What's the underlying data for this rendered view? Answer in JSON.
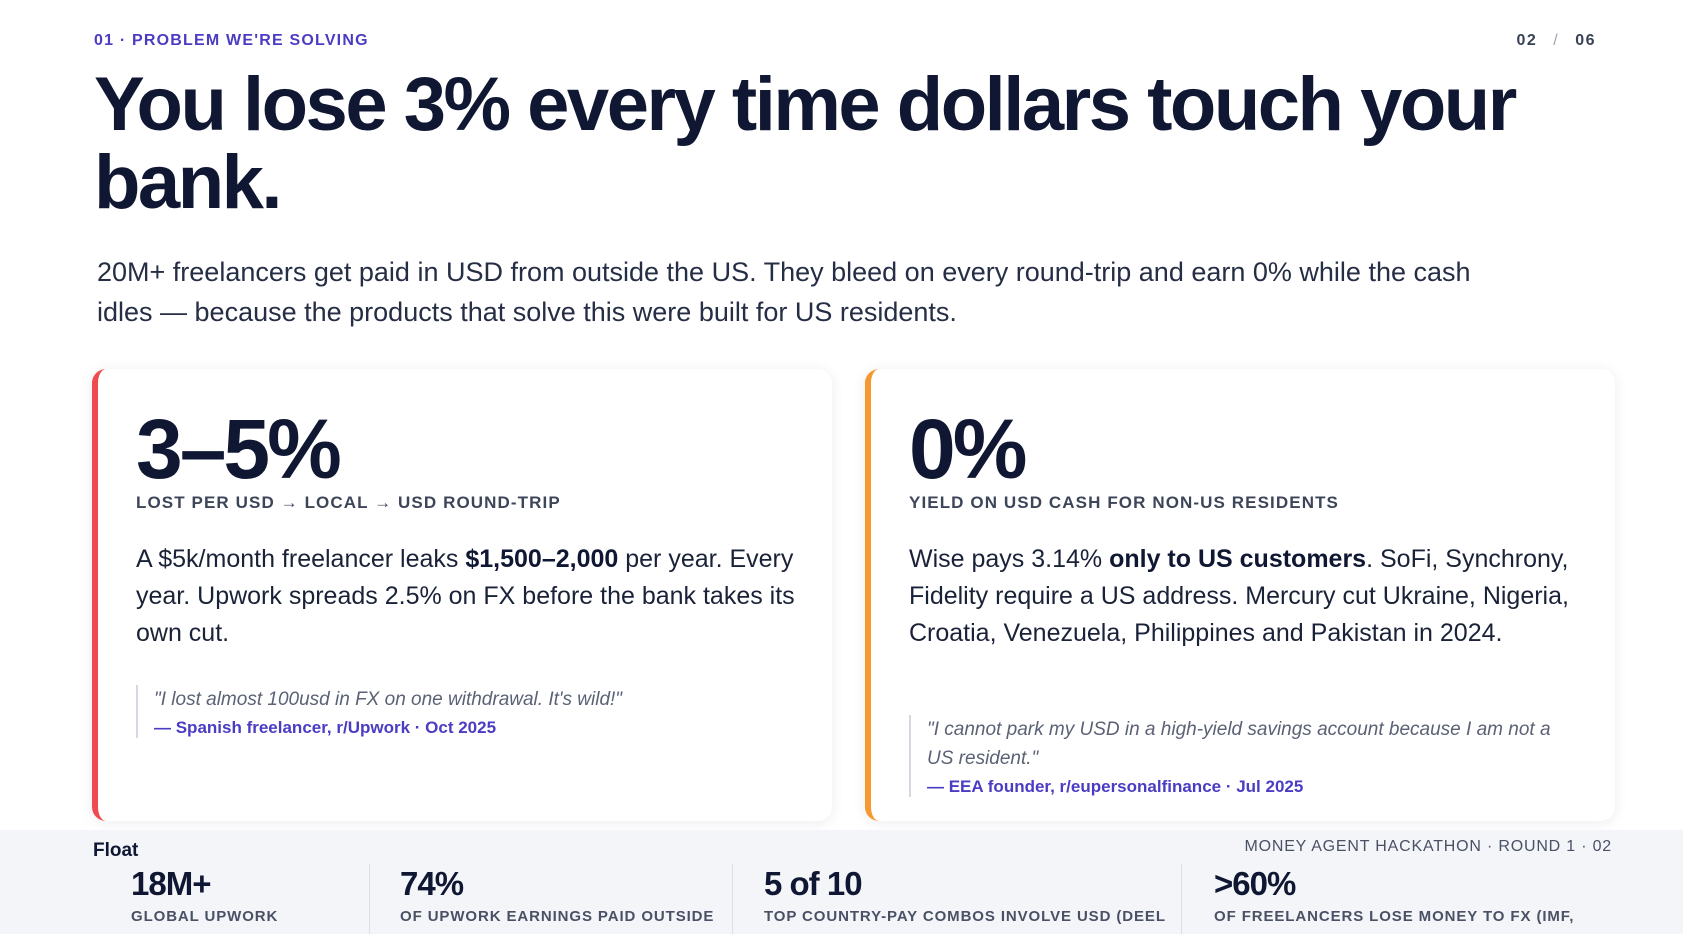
{
  "header": {
    "eyebrow": "01 · PROBLEM WE'RE SOLVING",
    "page_current": "02",
    "page_separator": "/",
    "page_total": "06"
  },
  "headline": "You lose 3% every time dollars touch your bank.",
  "subtitle": "20M+ freelancers get paid in USD from outside the US. They bleed on every round-trip and earn 0% while the cash idles — because the products that solve this were built for US residents.",
  "cards": [
    {
      "stat": "3–5%",
      "label": "LOST PER USD → LOCAL → USD ROUND-TRIP",
      "body": [
        {
          "text": "A $5k/month freelancer leaks ",
          "bold": false
        },
        {
          "text": "$1,500–2,000",
          "bold": true
        },
        {
          "text": " per year. Every year. Upwork spreads 2.5% on FX before the bank takes its own cut.",
          "bold": false
        }
      ],
      "quote": "\"I lost almost 100usd in FX on one withdrawal. It's wild!\"",
      "attribution": "— Spanish freelancer, r/Upwork · Oct 2025"
    },
    {
      "stat": "0%",
      "label": "YIELD ON USD CASH FOR NON-US RESIDENTS",
      "body": [
        {
          "text": "Wise pays 3.14% ",
          "bold": false
        },
        {
          "text": "only to US customers",
          "bold": true
        },
        {
          "text": ". SoFi, Synchrony, Fidelity require a US address. Mercury cut Ukraine, Nigeria, Croatia, Venezuela, Philippines and Pakistan in 2024.",
          "bold": false
        }
      ],
      "quote": "\"I cannot park my USD in a high-yield savings account because I am not a US resident.\"",
      "attribution": "— EEA founder, r/eupersonalfinance · Jul 2025"
    }
  ],
  "footer": {
    "brand": "Float",
    "event": "MONEY AGENT HACKATHON · ROUND 1 · 02",
    "stats": [
      {
        "value": "18M+",
        "label": "GLOBAL UPWORK"
      },
      {
        "value": "74%",
        "label": "OF UPWORK EARNINGS PAID OUTSIDE"
      },
      {
        "value": "5 of 10",
        "label": "TOP COUNTRY-PAY COMBOS INVOLVE USD (DEEL"
      },
      {
        "value": ">60%",
        "label": "OF FREELANCERS LOSE MONEY TO FX (IMF,"
      }
    ]
  }
}
